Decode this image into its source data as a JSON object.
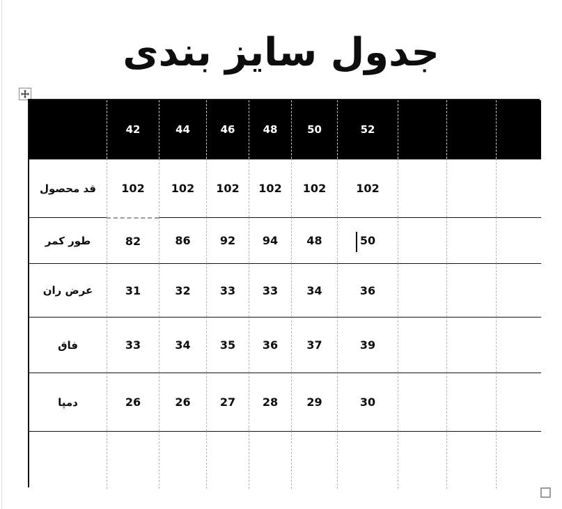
{
  "title": "جدول سایز بندی",
  "table": {
    "header": [
      "",
      "42",
      "44",
      "46",
      "48",
      "50",
      "52",
      "",
      "",
      ""
    ],
    "rows": [
      {
        "label": "قد محصول",
        "values": [
          "102",
          "102",
          "102",
          "102",
          "102",
          "102",
          "",
          "",
          ""
        ]
      },
      {
        "label": "طور کمر",
        "values": [
          "82",
          "86",
          "92",
          "94",
          "48",
          "50",
          "",
          "",
          ""
        ]
      },
      {
        "label": "عرض ران",
        "values": [
          "31",
          "32",
          "33",
          "33",
          "34",
          "36",
          "",
          "",
          ""
        ]
      },
      {
        "label": "فاق",
        "values": [
          "33",
          "34",
          "35",
          "36",
          "37",
          "39",
          "",
          "",
          ""
        ]
      },
      {
        "label": "دمپا",
        "values": [
          "26",
          "26",
          "27",
          "28",
          "29",
          "30",
          "",
          "",
          ""
        ]
      },
      {
        "label": "",
        "values": [
          "",
          "",
          "",
          "",
          "",
          "",
          "",
          "",
          ""
        ]
      }
    ]
  },
  "editor": {
    "caret": {
      "row_label": "طور کمر",
      "before_value": "50"
    },
    "icons": [
      "table-move-icon",
      "table-resize-handle"
    ]
  },
  "colors": {
    "header_bg": "#000000",
    "header_text": "#ffffff",
    "body_text": "#0d0d0d",
    "gridline_dashed": "#b3b3b3",
    "solid_border": "#111111",
    "handle_border": "#9b9b9b"
  }
}
